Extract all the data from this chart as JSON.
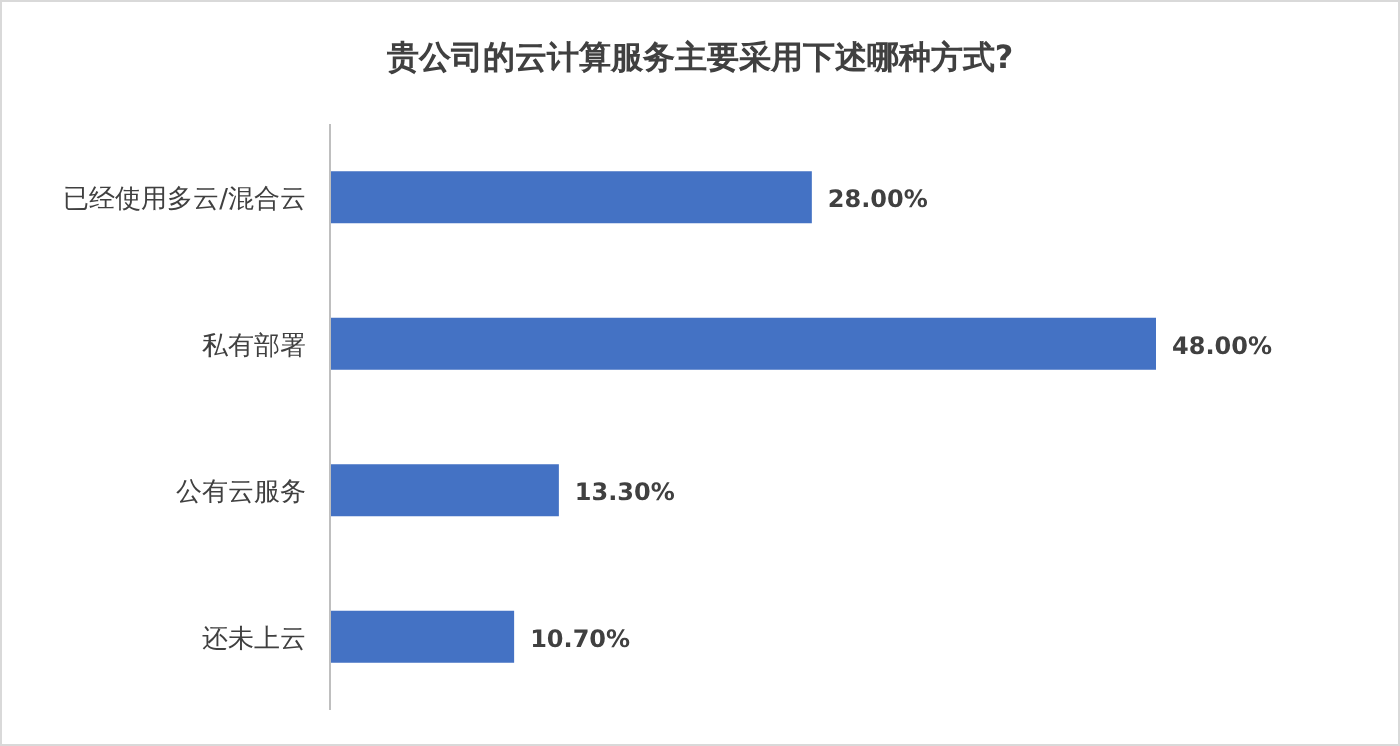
{
  "chart_data": {
    "type": "bar",
    "orientation": "horizontal",
    "title": "贵公司的云计算服务主要采用下述哪种方式?",
    "categories": [
      "已经使用多云/混合云",
      "私有部署",
      "公有云服务",
      "还未上云"
    ],
    "values": [
      28.0,
      48.0,
      13.3,
      10.7
    ],
    "value_labels": [
      "28.00%",
      "48.00%",
      "13.30%",
      "10.70%"
    ],
    "color": "#4472c4"
  }
}
